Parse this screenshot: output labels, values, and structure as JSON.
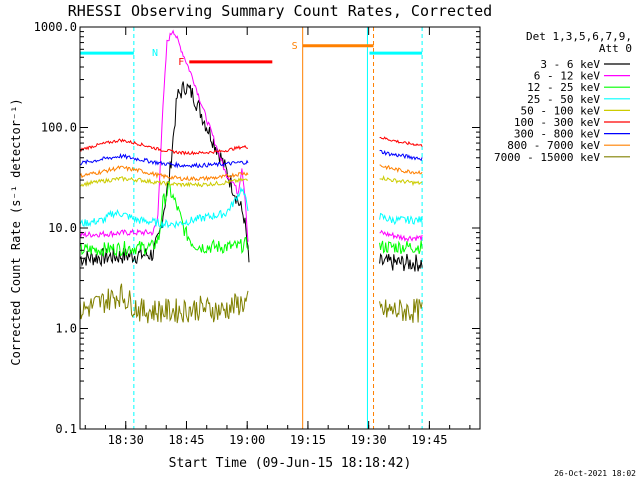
{
  "chart_data": {
    "type": "line",
    "title": "RHESSI Observing Summary Count Rates, Corrected",
    "xlabel": "Start Time (09-Jun-15 18:18:42)",
    "ylabel": "Corrected Count Rate (s⁻¹ detector⁻¹)",
    "y_scale": "log",
    "ylim": [
      0.1,
      1000
    ],
    "xlim": [
      "18:18:42",
      "19:57:30"
    ],
    "yticks": [
      "0.1",
      "1.0",
      "10.0",
      "100.0",
      "1000.0"
    ],
    "xticks": [
      "18:30",
      "18:45",
      "19:00",
      "19:15",
      "19:30",
      "19:45"
    ],
    "legend_header": "Det 1,3,5,6,7,9,",
    "legend_header2": "Att 0",
    "legend_position": "top-right",
    "grid": false,
    "footer_date": "26-Oct-2021 18:02",
    "series": [
      {
        "name": "3 - 6 keV",
        "color": "#000000",
        "t": [
          0,
          18,
          19.5,
          20.5,
          22,
          24,
          26,
          28,
          31,
          34,
          36,
          38,
          40.5,
          41.3,
          41.8
        ],
        "v": [
          5,
          5.5,
          8,
          14,
          30,
          200,
          260,
          210,
          110,
          60,
          38,
          24,
          13,
          7,
          4
        ]
      },
      {
        "name": "6 - 12 keV",
        "color": "#ff00ff",
        "t": [
          0,
          12,
          18,
          19.2,
          20.2,
          21.5,
          23,
          25,
          28,
          31,
          34,
          36,
          38,
          39,
          40,
          40.8,
          41.5
        ],
        "v": [
          8.5,
          9,
          9,
          12,
          100,
          700,
          950,
          600,
          300,
          130,
          60,
          35,
          28,
          22,
          40,
          20,
          7
        ]
      },
      {
        "name": "12 - 25 keV",
        "color": "#00ff00",
        "t": [
          0,
          18,
          19.5,
          20.5,
          22,
          24,
          26,
          28,
          30,
          33,
          36,
          39,
          41.5
        ],
        "v": [
          6,
          6.5,
          8,
          18,
          25,
          16,
          9,
          7,
          6.5,
          6.5,
          6.5,
          6.5,
          7
        ]
      },
      {
        "name": "25 - 50 keV",
        "color": "#00ffff",
        "t": [
          0,
          6,
          8,
          10,
          12,
          14,
          18,
          20,
          24,
          28,
          32,
          36,
          38,
          40,
          41.5
        ],
        "v": [
          11,
          12,
          14,
          14,
          13,
          12,
          11.5,
          11,
          11,
          12,
          13,
          14,
          18,
          25,
          16
        ]
      },
      {
        "name": "50 - 100 keV",
        "color": "#cccc00",
        "t": [
          0,
          5,
          10,
          15,
          20,
          25,
          30,
          35,
          40,
          41.5
        ],
        "v": [
          27,
          29,
          31,
          30,
          28,
          27,
          27,
          28,
          30,
          30
        ]
      },
      {
        "name": "100 - 300 keV",
        "color": "#ff0000",
        "t": [
          0,
          5,
          10,
          15,
          20,
          25,
          30,
          35,
          40,
          41.5
        ],
        "v": [
          60,
          68,
          75,
          68,
          60,
          56,
          56,
          58,
          64,
          64
        ]
      },
      {
        "name": "300 - 800 keV",
        "color": "#0000ff",
        "t": [
          0,
          5,
          10,
          15,
          20,
          25,
          30,
          35,
          40,
          41.5
        ],
        "v": [
          44,
          48,
          52,
          48,
          44,
          42,
          42,
          43,
          45,
          45
        ]
      },
      {
        "name": "800 - 7000 keV",
        "color": "#ff8000",
        "t": [
          0,
          5,
          10,
          15,
          20,
          25,
          30,
          35,
          40,
          41.5
        ],
        "v": [
          33,
          36,
          40,
          37,
          33,
          31,
          31,
          32,
          35,
          35
        ]
      },
      {
        "name": "7000 - 15000 keV",
        "color": "#808000",
        "t": [
          0,
          5,
          10,
          15,
          20,
          25,
          30,
          35,
          40,
          41.5
        ],
        "v": [
          1.5,
          1.8,
          2.2,
          1.5,
          1.5,
          1.5,
          1.6,
          1.5,
          1.8,
          1.8
        ]
      }
    ],
    "segments_after_gap": {
      "t": [
        74,
        77,
        80,
        83,
        84.5
      ],
      "series_levels": {
        "3 - 6 keV": [
          4.5,
          4.5,
          4.5,
          4.5,
          4.5
        ],
        "6 - 12 keV": [
          9,
          8.5,
          8,
          8,
          8
        ],
        "12 - 25 keV": [
          6.5,
          6.5,
          6.5,
          6.5,
          6.5
        ],
        "25 - 50 keV": [
          13,
          12,
          12,
          12,
          12
        ],
        "50 - 100 keV": [
          32,
          30,
          29,
          28,
          28
        ],
        "100 - 300 keV": [
          80,
          75,
          70,
          68,
          66
        ],
        "300 - 800 keV": [
          58,
          54,
          52,
          50,
          49
        ],
        "800 - 7000 keV": [
          42,
          39,
          37,
          36,
          36
        ],
        "7000 - 15000 keV": [
          1.5,
          1.5,
          1.5,
          1.5,
          1.5
        ]
      }
    },
    "annotations": [
      {
        "label": "N",
        "color": "#00ffff",
        "bars": [
          [
            0,
            13.3
          ],
          [
            71.5,
            84.5
          ]
        ],
        "level": 550
      },
      {
        "label": "F",
        "color": "#ff0000",
        "bars": [
          [
            27,
            47.5
          ]
        ],
        "level": 450
      },
      {
        "label": "S",
        "color": "#ff8000",
        "bars": [
          [
            55,
            72.5
          ]
        ],
        "level": 650
      }
    ],
    "vlines": [
      {
        "t": 0,
        "color": "#00ffff",
        "style": "solid"
      },
      {
        "t": 13.3,
        "color": "#00ffff",
        "style": "dashed"
      },
      {
        "t": 55,
        "color": "#ff8000",
        "style": "solid"
      },
      {
        "t": 71,
        "color": "#00ffff",
        "style": "solid"
      },
      {
        "t": 72.5,
        "color": "#ff8000",
        "style": "dashed"
      },
      {
        "t": 84.5,
        "color": "#00ffff",
        "style": "dashed"
      }
    ]
  }
}
